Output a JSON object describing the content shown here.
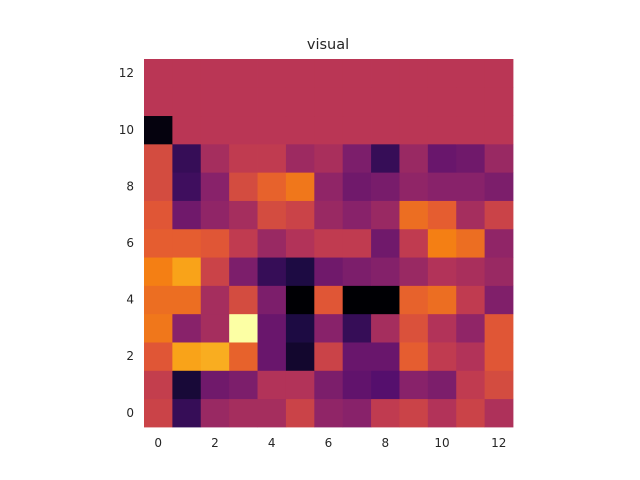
{
  "chart_data": {
    "type": "heatmap",
    "title": "visual",
    "xlabel": "",
    "ylabel": "",
    "colormap": "inferno",
    "xlim": [
      -0.5,
      12.5
    ],
    "ylim": [
      -0.5,
      12.5
    ],
    "xticks": [
      0,
      2,
      4,
      6,
      8,
      10,
      12
    ],
    "yticks": [
      0,
      2,
      4,
      6,
      8,
      10,
      12
    ],
    "grid": false,
    "origin": "lower",
    "rows": [
      [
        0.55,
        0.18,
        0.42,
        0.45,
        0.45,
        0.55,
        0.4,
        0.38,
        0.52,
        0.55,
        0.48,
        0.55,
        0.47
      ],
      [
        0.53,
        0.1,
        0.32,
        0.35,
        0.48,
        0.48,
        0.35,
        0.28,
        0.25,
        0.38,
        0.35,
        0.52,
        0.58
      ],
      [
        0.62,
        0.8,
        0.82,
        0.65,
        0.3,
        0.08,
        0.55,
        0.3,
        0.3,
        0.64,
        0.52,
        0.48,
        0.62
      ],
      [
        0.7,
        0.38,
        0.45,
        1.0,
        0.3,
        0.12,
        0.38,
        0.18,
        0.45,
        0.6,
        0.48,
        0.4,
        0.62
      ],
      [
        0.68,
        0.68,
        0.45,
        0.58,
        0.35,
        0.0,
        0.62,
        0.0,
        0.0,
        0.65,
        0.68,
        0.52,
        0.36
      ],
      [
        0.72,
        0.8,
        0.55,
        0.35,
        0.18,
        0.12,
        0.32,
        0.35,
        0.37,
        0.42,
        0.48,
        0.46,
        0.42
      ],
      [
        0.64,
        0.64,
        0.62,
        0.52,
        0.42,
        0.48,
        0.52,
        0.52,
        0.32,
        0.52,
        0.72,
        0.68,
        0.4
      ],
      [
        0.62,
        0.32,
        0.4,
        0.45,
        0.58,
        0.55,
        0.42,
        0.38,
        0.42,
        0.68,
        0.64,
        0.45,
        0.55
      ],
      [
        0.58,
        0.2,
        0.38,
        0.58,
        0.65,
        0.7,
        0.4,
        0.32,
        0.34,
        0.4,
        0.38,
        0.38,
        0.35
      ],
      [
        0.58,
        0.18,
        0.45,
        0.52,
        0.52,
        0.43,
        0.46,
        0.35,
        0.18,
        0.42,
        0.3,
        0.32,
        0.42
      ],
      [
        0.02,
        0.5,
        0.5,
        0.5,
        0.5,
        0.5,
        0.5,
        0.5,
        0.5,
        0.5,
        0.5,
        0.5,
        0.5
      ],
      [
        0.5,
        0.5,
        0.5,
        0.5,
        0.5,
        0.5,
        0.5,
        0.5,
        0.5,
        0.5,
        0.5,
        0.5,
        0.5
      ],
      [
        0.5,
        0.5,
        0.5,
        0.5,
        0.5,
        0.5,
        0.5,
        0.5,
        0.5,
        0.5,
        0.5,
        0.5,
        0.5
      ]
    ]
  }
}
